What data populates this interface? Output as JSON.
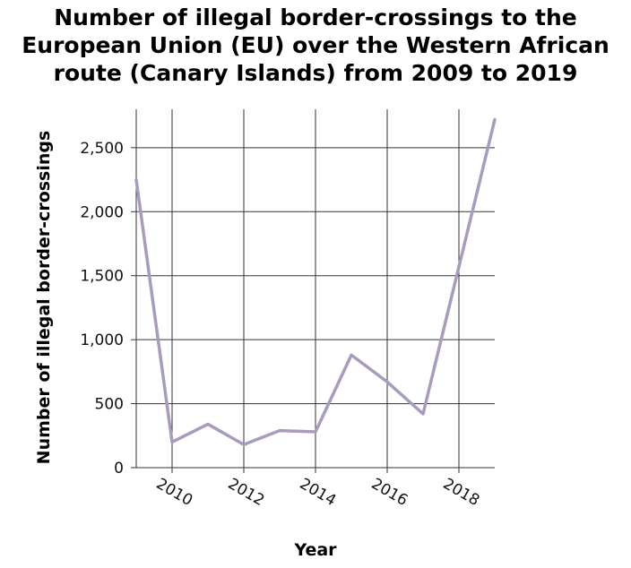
{
  "chart_data": {
    "type": "line",
    "title_lines": [
      "Number of illegal border-crossings to the",
      "European Union (EU) over the Western African",
      "route (Canary Islands) from 2009 to 2019"
    ],
    "xlabel": "Year",
    "ylabel": "Number of illegal border-crossings",
    "x": [
      2009,
      2010,
      2011,
      2012,
      2013,
      2014,
      2015,
      2016,
      2017,
      2018,
      2019
    ],
    "series": [
      {
        "values": [
          2250,
          200,
          340,
          180,
          290,
          280,
          880,
          670,
          420,
          1570,
          2720
        ]
      }
    ],
    "xticks": [
      "2010",
      "2012",
      "2014",
      "2016",
      "2018"
    ],
    "xtick_values": [
      2010,
      2012,
      2014,
      2016,
      2018
    ],
    "yticks": [
      "0",
      "500",
      "1,000",
      "1,500",
      "2,000",
      "2,500"
    ],
    "ytick_values": [
      0,
      500,
      1000,
      1500,
      2000,
      2500
    ],
    "xlim": [
      2009,
      2019
    ],
    "ylim": [
      0,
      2800
    ],
    "grid": true,
    "line_color": "#a99bbd"
  }
}
